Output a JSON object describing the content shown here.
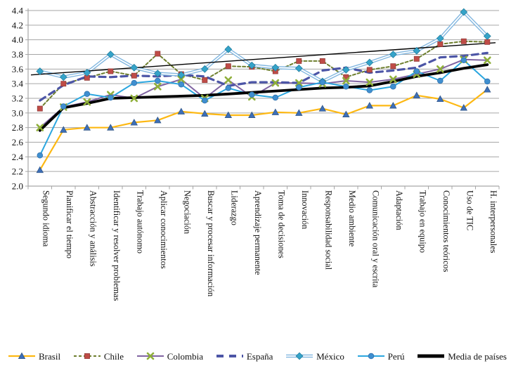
{
  "chart_data": {
    "type": "line",
    "title": "",
    "xlabel": "",
    "ylabel": "",
    "ylim": [
      2.0,
      4.4
    ],
    "ytick_step": 0.2,
    "ytick_labels": [
      "2.0",
      "2.2",
      "2.4",
      "2.6",
      "2.8",
      "3.0",
      "3.2",
      "3.4",
      "3.6",
      "3.8",
      "4.0",
      "4.2",
      "4.4"
    ],
    "grid": true,
    "legend_position": "bottom",
    "categories": [
      "Segundo idioma",
      "Planificar el tiempo",
      "Abstracción y análisis",
      "Identificar y resolver problemas",
      "Trabajo autónomo",
      "Aplicar conocimientos",
      "Negociación",
      "Buscar y procesar información",
      "Liderazgo",
      "Aprendizaje permanente",
      "Toma de decisiones",
      "Innovación",
      "Responsabilidad social",
      "Medio ambiente",
      "Comunicación oral y escrita",
      "Adaptación",
      "Trabajo en equipo",
      "Conocimientos teóricos",
      "Uso de TIC",
      "H. interpersonales"
    ],
    "series": [
      {
        "id": "brasil",
        "name": "Brasil",
        "line_color": "#FDB813",
        "line_style": "solid",
        "line_width": 2.2,
        "marker": "triangle",
        "marker_color": "#3E6FB7",
        "values": [
          2.22,
          2.77,
          2.8,
          2.8,
          2.87,
          2.9,
          3.02,
          2.99,
          2.97,
          2.97,
          3.01,
          3.0,
          3.06,
          2.98,
          3.1,
          3.1,
          3.24,
          3.19,
          3.07,
          3.32
        ]
      },
      {
        "id": "chile",
        "name": "Chile",
        "line_color": "#6E7F2E",
        "line_style": "dashed",
        "line_width": 2,
        "marker": "square",
        "marker_color": "#BF4C47",
        "values": [
          3.06,
          3.4,
          3.48,
          3.57,
          3.51,
          3.81,
          3.53,
          3.45,
          3.64,
          3.63,
          3.57,
          3.71,
          3.71,
          3.49,
          3.59,
          3.64,
          3.74,
          3.94,
          3.98,
          3.97
        ]
      },
      {
        "id": "colombia",
        "name": "Colombia",
        "line_color": "#8064A2",
        "line_style": "solid",
        "line_width": 2,
        "marker": "x",
        "marker_color": "#8FAF3A",
        "values": [
          2.8,
          3.08,
          3.15,
          3.25,
          3.2,
          3.36,
          3.46,
          3.2,
          3.45,
          3.22,
          3.41,
          3.41,
          3.4,
          3.44,
          3.42,
          3.46,
          3.53,
          3.6,
          3.73,
          3.72
        ]
      },
      {
        "id": "espana",
        "name": "España",
        "line_color": "#4C55A6",
        "line_style": "long-dash",
        "line_width": 3.2,
        "marker": "none",
        "marker_color": "#4C55A6",
        "values": [
          3.17,
          3.38,
          3.5,
          3.49,
          3.51,
          3.5,
          3.52,
          3.5,
          3.37,
          3.42,
          3.42,
          3.41,
          3.58,
          3.62,
          3.55,
          3.58,
          3.62,
          3.76,
          3.78,
          3.82
        ]
      },
      {
        "id": "mexico",
        "name": "México",
        "line_color": "#82B7E0",
        "line_style": "double",
        "line_width": 4.6,
        "marker": "diamond",
        "marker_color": "#35A3C9",
        "values": [
          3.57,
          3.49,
          3.55,
          3.8,
          3.62,
          3.54,
          3.52,
          3.6,
          3.87,
          3.65,
          3.62,
          3.61,
          3.43,
          3.59,
          3.69,
          3.8,
          3.85,
          4.02,
          4.38,
          4.05
        ]
      },
      {
        "id": "peru",
        "name": "Perú",
        "line_color": "#2BA6DF",
        "line_style": "solid",
        "line_width": 2,
        "marker": "circle",
        "marker_color": "#3F8FD0",
        "values": [
          2.42,
          3.09,
          3.26,
          3.21,
          3.41,
          3.44,
          3.39,
          3.17,
          3.34,
          3.25,
          3.21,
          3.35,
          3.42,
          3.36,
          3.31,
          3.36,
          3.57,
          3.44,
          3.72,
          3.43
        ]
      },
      {
        "id": "media",
        "name": "Media de países",
        "line_color": "#000000",
        "line_style": "solid",
        "line_width": 3.8,
        "marker": "none",
        "marker_color": "#000000",
        "values": [
          2.76,
          3.07,
          3.13,
          3.2,
          3.21,
          3.22,
          3.23,
          3.24,
          3.26,
          3.28,
          3.3,
          3.32,
          3.34,
          3.35,
          3.37,
          3.43,
          3.5,
          3.55,
          3.61,
          3.66
        ]
      }
    ],
    "trendline": {
      "color": "#000000",
      "width": 1.4,
      "start_value": 3.52,
      "end_value": 3.96
    },
    "colors": {
      "gridline": "#A6A6A6",
      "axis": "#A6A6A6",
      "text": "#111111",
      "background": "#FFFFFF"
    }
  }
}
